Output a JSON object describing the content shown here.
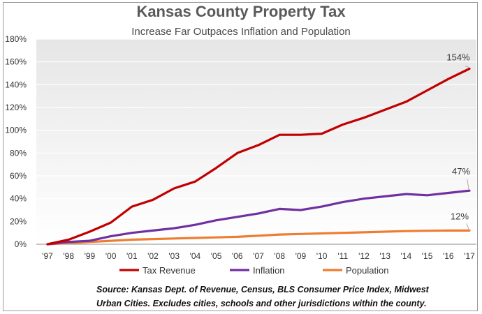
{
  "chart_data": {
    "type": "line",
    "title": "Kansas County Property Tax",
    "subtitle": "Increase Far Outpaces Inflation and Population",
    "categories": [
      "'97",
      "'98",
      "'99",
      "'00",
      "'01",
      "'02",
      "'03",
      "'04",
      "'05",
      "'06",
      "'07",
      "'08",
      "'09",
      "'10",
      "'11",
      "'12",
      "'13",
      "'14",
      "'15",
      "'16",
      "'17"
    ],
    "y_ticks": [
      "0%",
      "20%",
      "40%",
      "60%",
      "80%",
      "100%",
      "120%",
      "140%",
      "160%",
      "180%"
    ],
    "ylim": [
      0,
      180
    ],
    "series": [
      {
        "name": "Tax Revenue",
        "color": "#c00000",
        "values": [
          0,
          4,
          11,
          19,
          33,
          39,
          49,
          55,
          67,
          80,
          87,
          96,
          96,
          97,
          105,
          111,
          118,
          125,
          135,
          145,
          154
        ],
        "end_label": "154%"
      },
      {
        "name": "Inflation",
        "color": "#7030a0",
        "values": [
          0,
          2,
          3,
          7,
          10,
          12,
          14,
          17,
          21,
          24,
          27,
          31,
          30,
          33,
          37,
          40,
          42,
          44,
          43,
          45,
          47
        ],
        "end_label": "47%"
      },
      {
        "name": "Population",
        "color": "#ed7d31",
        "values": [
          0,
          1,
          2,
          3,
          4,
          4.5,
          5,
          5.5,
          6,
          6.5,
          7.5,
          8.5,
          9,
          9.5,
          10,
          10.5,
          11,
          11.5,
          11.8,
          12,
          12
        ],
        "end_label": "12%"
      }
    ],
    "legend": [
      "Tax Revenue",
      "Inflation",
      "Population"
    ],
    "legend_position": "bottom",
    "grid": true
  },
  "source_note": {
    "line1": "Source: Kansas Dept. of Revenue, Census, BLS Consumer Price Index, Midwest",
    "line2": "Urban Cities.  Excludes cities, schools and other jurisdictions within the county."
  }
}
